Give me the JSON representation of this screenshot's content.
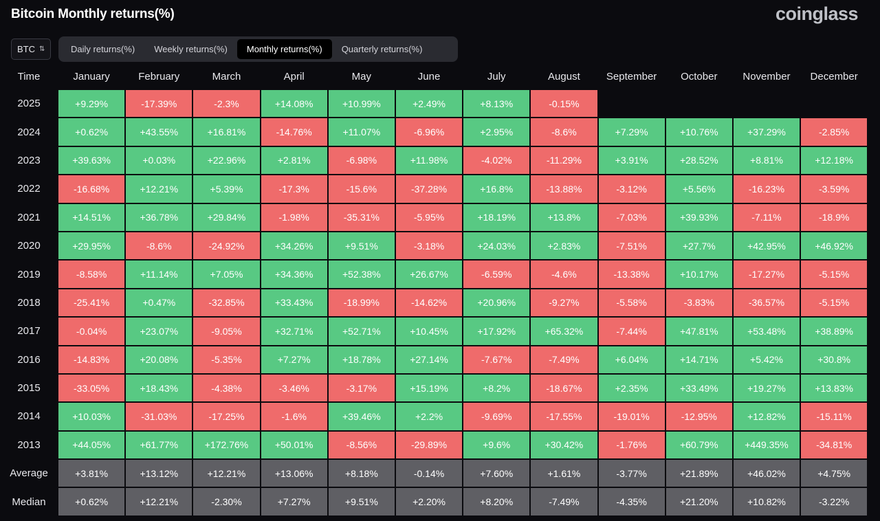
{
  "title": "Bitcoin Monthly returns(%)",
  "brand": "coinglass",
  "asset_select": {
    "value": "BTC"
  },
  "tabs": [
    {
      "label": "Daily returns(%)",
      "active": false
    },
    {
      "label": "Weekly returns(%)",
      "active": false
    },
    {
      "label": "Monthly returns(%)",
      "active": true
    },
    {
      "label": "Quarterly returns(%)",
      "active": false
    }
  ],
  "colors": {
    "positive": "#58c983",
    "negative": "#ef6b6b",
    "stat": "#5f5f64"
  },
  "table": {
    "headers": [
      "Time",
      "January",
      "February",
      "March",
      "April",
      "May",
      "June",
      "July",
      "August",
      "September",
      "October",
      "November",
      "December"
    ],
    "rows": [
      {
        "label": "2025",
        "values": [
          "+9.29%",
          "-17.39%",
          "-2.3%",
          "+14.08%",
          "+10.99%",
          "+2.49%",
          "+8.13%",
          "-0.15%",
          "",
          "",
          "",
          ""
        ]
      },
      {
        "label": "2024",
        "values": [
          "+0.62%",
          "+43.55%",
          "+16.81%",
          "-14.76%",
          "+11.07%",
          "-6.96%",
          "+2.95%",
          "-8.6%",
          "+7.29%",
          "+10.76%",
          "+37.29%",
          "-2.85%"
        ]
      },
      {
        "label": "2023",
        "values": [
          "+39.63%",
          "+0.03%",
          "+22.96%",
          "+2.81%",
          "-6.98%",
          "+11.98%",
          "-4.02%",
          "-11.29%",
          "+3.91%",
          "+28.52%",
          "+8.81%",
          "+12.18%"
        ]
      },
      {
        "label": "2022",
        "values": [
          "-16.68%",
          "+12.21%",
          "+5.39%",
          "-17.3%",
          "-15.6%",
          "-37.28%",
          "+16.8%",
          "-13.88%",
          "-3.12%",
          "+5.56%",
          "-16.23%",
          "-3.59%"
        ]
      },
      {
        "label": "2021",
        "values": [
          "+14.51%",
          "+36.78%",
          "+29.84%",
          "-1.98%",
          "-35.31%",
          "-5.95%",
          "+18.19%",
          "+13.8%",
          "-7.03%",
          "+39.93%",
          "-7.11%",
          "-18.9%"
        ]
      },
      {
        "label": "2020",
        "values": [
          "+29.95%",
          "-8.6%",
          "-24.92%",
          "+34.26%",
          "+9.51%",
          "-3.18%",
          "+24.03%",
          "+2.83%",
          "-7.51%",
          "+27.7%",
          "+42.95%",
          "+46.92%"
        ]
      },
      {
        "label": "2019",
        "values": [
          "-8.58%",
          "+11.14%",
          "+7.05%",
          "+34.36%",
          "+52.38%",
          "+26.67%",
          "-6.59%",
          "-4.6%",
          "-13.38%",
          "+10.17%",
          "-17.27%",
          "-5.15%"
        ]
      },
      {
        "label": "2018",
        "values": [
          "-25.41%",
          "+0.47%",
          "-32.85%",
          "+33.43%",
          "-18.99%",
          "-14.62%",
          "+20.96%",
          "-9.27%",
          "-5.58%",
          "-3.83%",
          "-36.57%",
          "-5.15%"
        ]
      },
      {
        "label": "2017",
        "values": [
          "-0.04%",
          "+23.07%",
          "-9.05%",
          "+32.71%",
          "+52.71%",
          "+10.45%",
          "+17.92%",
          "+65.32%",
          "-7.44%",
          "+47.81%",
          "+53.48%",
          "+38.89%"
        ]
      },
      {
        "label": "2016",
        "values": [
          "-14.83%",
          "+20.08%",
          "-5.35%",
          "+7.27%",
          "+18.78%",
          "+27.14%",
          "-7.67%",
          "-7.49%",
          "+6.04%",
          "+14.71%",
          "+5.42%",
          "+30.8%"
        ]
      },
      {
        "label": "2015",
        "values": [
          "-33.05%",
          "+18.43%",
          "-4.38%",
          "-3.46%",
          "-3.17%",
          "+15.19%",
          "+8.2%",
          "-18.67%",
          "+2.35%",
          "+33.49%",
          "+19.27%",
          "+13.83%"
        ]
      },
      {
        "label": "2014",
        "values": [
          "+10.03%",
          "-31.03%",
          "-17.25%",
          "-1.6%",
          "+39.46%",
          "+2.2%",
          "-9.69%",
          "-17.55%",
          "-19.01%",
          "-12.95%",
          "+12.82%",
          "-15.11%"
        ]
      },
      {
        "label": "2013",
        "values": [
          "+44.05%",
          "+61.77%",
          "+172.76%",
          "+50.01%",
          "-8.56%",
          "-29.89%",
          "+9.6%",
          "+30.42%",
          "-1.76%",
          "+60.79%",
          "+449.35%",
          "-34.81%"
        ]
      }
    ],
    "stats": [
      {
        "label": "Average",
        "values": [
          "+3.81%",
          "+13.12%",
          "+12.21%",
          "+13.06%",
          "+8.18%",
          "-0.14%",
          "+7.60%",
          "+1.61%",
          "-3.77%",
          "+21.89%",
          "+46.02%",
          "+4.75%"
        ]
      },
      {
        "label": "Median",
        "values": [
          "+0.62%",
          "+12.21%",
          "-2.30%",
          "+7.27%",
          "+9.51%",
          "+2.20%",
          "+8.20%",
          "-7.49%",
          "-4.35%",
          "+21.20%",
          "+10.82%",
          "-3.22%"
        ]
      }
    ]
  }
}
